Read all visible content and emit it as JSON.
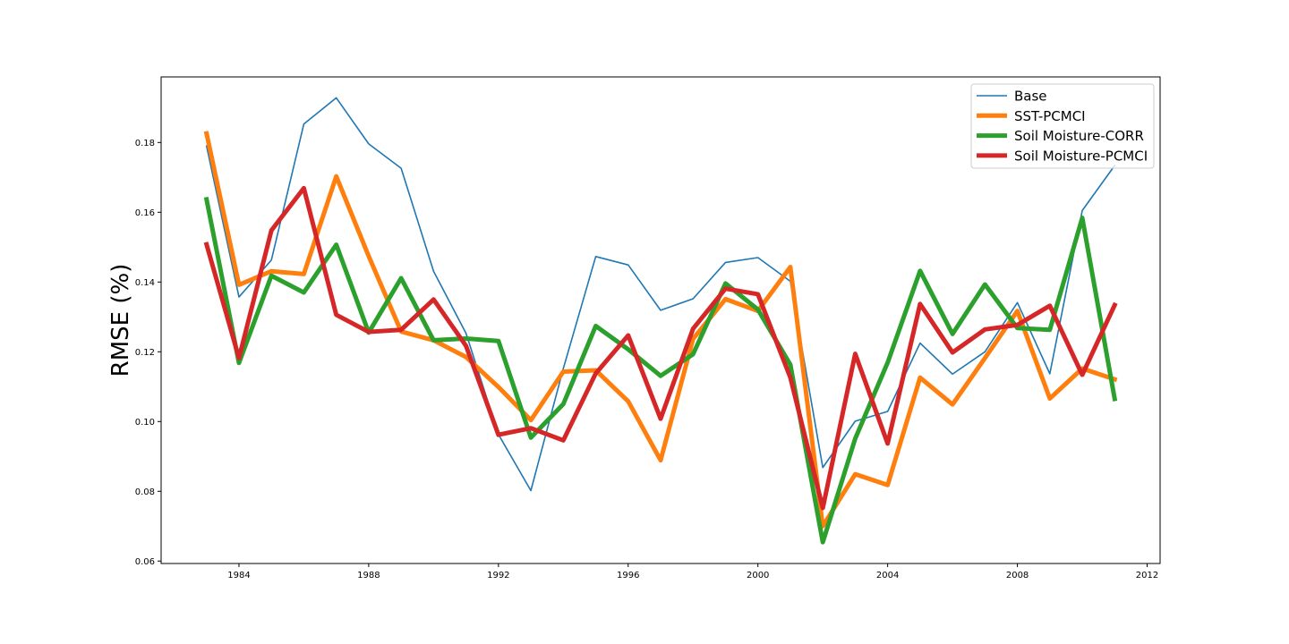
{
  "chart_data": {
    "type": "line",
    "title": "",
    "xlabel": "",
    "ylabel": "RMSE (%)",
    "xlim": [
      1981.6,
      2012.4
    ],
    "ylim": [
      0.0593,
      0.1988
    ],
    "xticks": [
      1984,
      1988,
      1992,
      1996,
      2000,
      2004,
      2008,
      2012
    ],
    "xtick_labels": [
      "1984",
      "1988",
      "1992",
      "1996",
      "2000",
      "2004",
      "2008",
      "2012"
    ],
    "yticks": [
      0.06,
      0.08,
      0.1,
      0.12,
      0.14,
      0.16,
      0.18
    ],
    "ytick_labels": [
      "0.06",
      "0.08",
      "0.10",
      "0.12",
      "0.14",
      "0.16",
      "0.18"
    ],
    "grid": false,
    "legend_position": "top-right",
    "x": [
      1983,
      1984,
      1985,
      1986,
      1987,
      1988,
      1989,
      1990,
      1991,
      1992,
      1993,
      1994,
      1995,
      1996,
      1997,
      1998,
      1999,
      2000,
      2001,
      2002,
      2003,
      2004,
      2005,
      2006,
      2007,
      2008,
      2009,
      2010,
      2011
    ],
    "series": [
      {
        "name": "Base",
        "color": "#1f77b4",
        "linewidth": 1.6,
        "values": [
          0.179,
          0.1357,
          0.1463,
          0.1853,
          0.1928,
          0.1796,
          0.1726,
          0.1431,
          0.1253,
          0.0963,
          0.0802,
          0.1152,
          0.1473,
          0.1449,
          0.1319,
          0.1352,
          0.1456,
          0.147,
          0.1402,
          0.0868,
          0.1001,
          0.1029,
          0.1225,
          0.1136,
          0.12,
          0.1341,
          0.1137,
          0.1605,
          0.1734
        ]
      },
      {
        "name": "SST-PCMCI",
        "color": "#ff7f0e",
        "linewidth": 5,
        "values": [
          0.1826,
          0.1392,
          0.1431,
          0.1423,
          0.1703,
          0.1474,
          0.1258,
          0.1233,
          0.1185,
          0.1099,
          0.1004,
          0.1143,
          0.1147,
          0.1058,
          0.0889,
          0.1237,
          0.1351,
          0.1317,
          0.1443,
          0.07,
          0.0849,
          0.0818,
          0.1126,
          0.1049,
          0.1182,
          0.1317,
          0.1066,
          0.1152,
          0.1121
        ]
      },
      {
        "name": "Soil Moisture-CORR",
        "color": "#2ca02c",
        "linewidth": 5,
        "values": [
          0.1637,
          0.1168,
          0.1418,
          0.137,
          0.1507,
          0.1255,
          0.1411,
          0.1233,
          0.1238,
          0.1231,
          0.0954,
          0.105,
          0.1274,
          0.1207,
          0.1131,
          0.1193,
          0.1396,
          0.1321,
          0.1163,
          0.0654,
          0.0951,
          0.1169,
          0.1432,
          0.1251,
          0.1393,
          0.1268,
          0.1263,
          0.1584,
          0.1065
        ]
      },
      {
        "name": "Soil Moisture-PCMCI",
        "color": "#d62728",
        "linewidth": 5,
        "values": [
          0.1508,
          0.1182,
          0.1548,
          0.1669,
          0.1306,
          0.1257,
          0.1263,
          0.135,
          0.1217,
          0.0962,
          0.0981,
          0.0946,
          0.1138,
          0.1247,
          0.1008,
          0.1266,
          0.1381,
          0.1365,
          0.1126,
          0.0752,
          0.1194,
          0.0937,
          0.1337,
          0.1198,
          0.1264,
          0.1277,
          0.1332,
          0.1134,
          0.1334
        ]
      }
    ]
  }
}
